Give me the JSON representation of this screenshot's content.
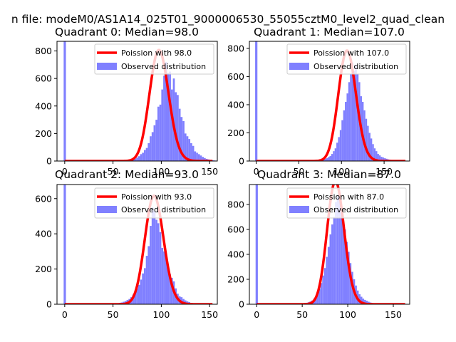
{
  "figure_title": "n file: modeM0/AS1A14_025T01_9000006530_55055cztM0_level2_quad_clean",
  "colors": {
    "hist": "#8080ff",
    "poisson": "#ff0000",
    "legend_border": "#cccccc"
  },
  "chart_data": [
    {
      "type": "bar",
      "title": "Quadrant 0: Median=98.0",
      "median": 98.0,
      "xlim": [
        -8,
        158
      ],
      "ylim": [
        0,
        870
      ],
      "xticks": [
        0,
        50,
        100,
        150
      ],
      "yticks": [
        0,
        200,
        400,
        600,
        800
      ],
      "grid": false,
      "legend_position": "top-right",
      "legend": [
        "Poission with 98.0",
        "Observed distribution"
      ],
      "zero_bin": {
        "x": 0,
        "height": 870
      },
      "hist_x_start": 58,
      "hist_heights": [
        5,
        5,
        5,
        10,
        10,
        12,
        14,
        18,
        25,
        35,
        50,
        60,
        80,
        95,
        130,
        180,
        210,
        260,
        300,
        395,
        410,
        520,
        620,
        720,
        640,
        650,
        520,
        600,
        500,
        480,
        380,
        320,
        290,
        200,
        180,
        160,
        130,
        110,
        70,
        60,
        50,
        40,
        30,
        22,
        16,
        12,
        8,
        6,
        4
      ]
    },
    {
      "type": "bar",
      "title": "Quadrant 1: Median=107.0",
      "median": 107.0,
      "xlim": [
        -8,
        180
      ],
      "ylim": [
        0,
        850
      ],
      "xticks": [
        0,
        50,
        100,
        150
      ],
      "yticks": [
        0,
        200,
        400,
        600,
        800
      ],
      "grid": false,
      "legend_position": "top-right",
      "legend": [
        "Poission with 107.0",
        "Observed distribution"
      ],
      "zero_bin": {
        "x": 0,
        "height": 850
      },
      "hist_x_start": 70,
      "hist_heights": [
        5,
        6,
        8,
        10,
        12,
        15,
        20,
        28,
        35,
        50,
        70,
        90,
        130,
        170,
        220,
        290,
        360,
        420,
        480,
        560,
        620,
        700,
        640,
        680,
        620,
        560,
        460,
        420,
        360,
        300,
        250,
        200,
        160,
        120,
        90,
        70,
        50,
        40,
        30,
        25,
        20,
        16,
        12,
        10,
        8,
        6,
        5
      ]
    },
    {
      "type": "bar",
      "title": "Quadrant 2: Median=93.0",
      "median": 93.0,
      "xlim": [
        -8,
        158
      ],
      "ylim": [
        0,
        680
      ],
      "xticks": [
        0,
        50,
        100,
        150
      ],
      "yticks": [
        0,
        200,
        400,
        600
      ],
      "grid": false,
      "legend_position": "top-right",
      "legend": [
        "Poission with 93.0",
        "Observed distribution"
      ],
      "zero_bin": {
        "x": 0,
        "height": 680
      },
      "hist_x_start": 50,
      "hist_heights": [
        4,
        5,
        6,
        8,
        10,
        14,
        18,
        24,
        30,
        40,
        55,
        70,
        90,
        110,
        140,
        175,
        205,
        275,
        330,
        445,
        550,
        530,
        480,
        460,
        410,
        320,
        300,
        275,
        200,
        170,
        150,
        130,
        90,
        60,
        45,
        40,
        30,
        22,
        16,
        12,
        8,
        5
      ]
    },
    {
      "type": "bar",
      "title": "Quadrant 3: Median=87.0",
      "median": 87.0,
      "xlim": [
        -8,
        168
      ],
      "ylim": [
        0,
        960
      ],
      "xticks": [
        0,
        50,
        100,
        150
      ],
      "yticks": [
        0,
        200,
        400,
        600,
        800
      ],
      "grid": false,
      "legend_position": "top-right",
      "legend": [
        "Poission with 87.0",
        "Observed distribution"
      ],
      "zero_bin": {
        "x": 0,
        "height": 960
      },
      "hist_x_start": 46,
      "hist_heights": [
        5,
        6,
        8,
        10,
        12,
        16,
        22,
        30,
        45,
        60,
        90,
        120,
        170,
        230,
        290,
        380,
        460,
        560,
        640,
        700,
        820,
        880,
        850,
        780,
        700,
        600,
        500,
        420,
        330,
        260,
        200,
        150,
        110,
        80,
        60,
        45,
        35,
        28,
        20,
        14,
        10,
        8
      ]
    }
  ]
}
